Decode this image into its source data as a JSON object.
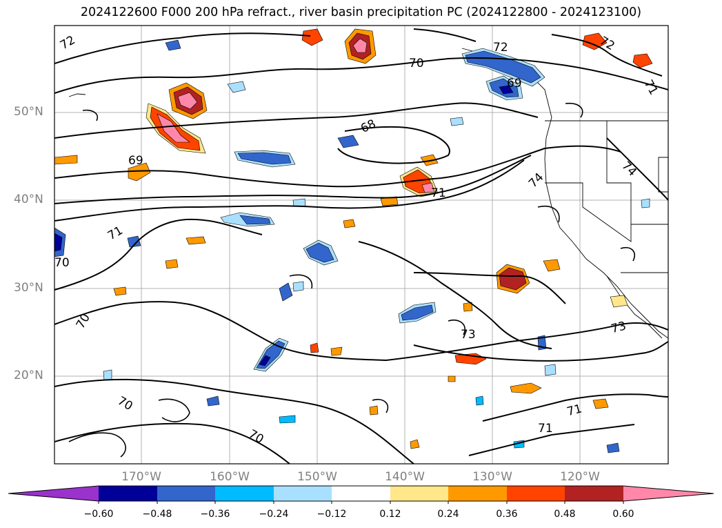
{
  "title": "2024122600 F000 200 hPa refract., river basin precipitation PC (2024122800 - 2024123100)",
  "lat_labels": [
    "50°N",
    "40°N",
    "30°N",
    "20°N"
  ],
  "lon_labels": [
    "170°W",
    "160°W",
    "150°W",
    "140°W",
    "130°W",
    "120°W"
  ],
  "contour_labels": [
    "72",
    "72",
    "72",
    "70",
    "68",
    "69",
    "69",
    "71",
    "71",
    "71",
    "70",
    "70",
    "70",
    "70",
    "73",
    "73",
    "71",
    "71",
    "74",
    "74"
  ],
  "colorbar": {
    "ticks": [
      "−0.60",
      "−0.48",
      "−0.36",
      "−0.24",
      "−0.12",
      "0.12",
      "0.24",
      "0.36",
      "0.48",
      "0.60"
    ],
    "colors": [
      "#9933cc",
      "#000099",
      "#3366cc",
      "#00bbff",
      "#aae0ff",
      "#ffffff",
      "#ffe78a",
      "#ff9900",
      "#ff4400",
      "#b22222",
      "#ff88aa"
    ]
  }
}
